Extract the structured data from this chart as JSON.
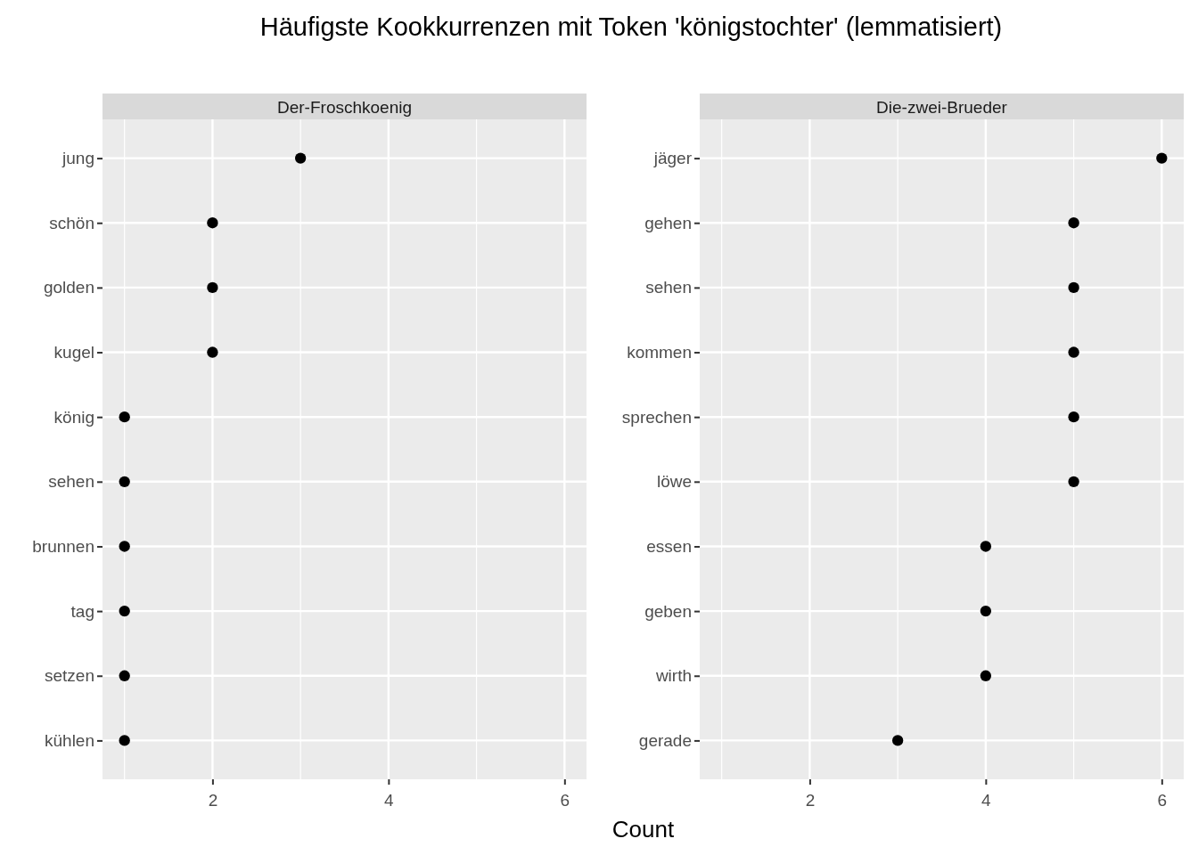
{
  "chart_data": [
    {
      "type": "scatter",
      "title": "Häufigste Kookkurrenzen mit Token 'königstochter' (lemmatisiert)",
      "subtitle": "Der-Froschkoenig",
      "xlabel": "Count",
      "orientation": "horizontal",
      "categories": [
        "jung",
        "schön",
        "golden",
        "kugel",
        "könig",
        "sehen",
        "brunnen",
        "tag",
        "setzen",
        "kühlen"
      ],
      "series": [
        {
          "color": "#000000",
          "values": [
            3,
            2,
            2,
            2,
            1,
            1,
            1,
            1,
            1,
            1
          ]
        }
      ],
      "xlim": [
        0.75,
        6.25
      ],
      "xticks": [
        {
          "value": 1,
          "label": null
        },
        2,
        {
          "value": 3,
          "label": null
        },
        4,
        {
          "value": 5,
          "label": null
        },
        6
      ],
      "grid": true,
      "marker": "circle"
    },
    {
      "type": "scatter",
      "subtitle": "Die-zwei-Brueder",
      "orientation": "horizontal",
      "categories": [
        "jäger",
        "gehen",
        "sehen",
        "kommen",
        "sprechen",
        "löwe",
        "essen",
        "geben",
        "wirth",
        "gerade"
      ],
      "series": [
        {
          "color": "#000000",
          "values": [
            6,
            5,
            5,
            5,
            5,
            5,
            4,
            4,
            4,
            3
          ]
        }
      ],
      "xlim": [
        0.75,
        6.25
      ],
      "xticks": [
        {
          "value": 1,
          "label": null
        },
        2,
        {
          "value": 3,
          "label": null
        },
        4,
        {
          "value": 5,
          "label": null
        },
        6
      ],
      "grid": true,
      "marker": "circle"
    }
  ]
}
